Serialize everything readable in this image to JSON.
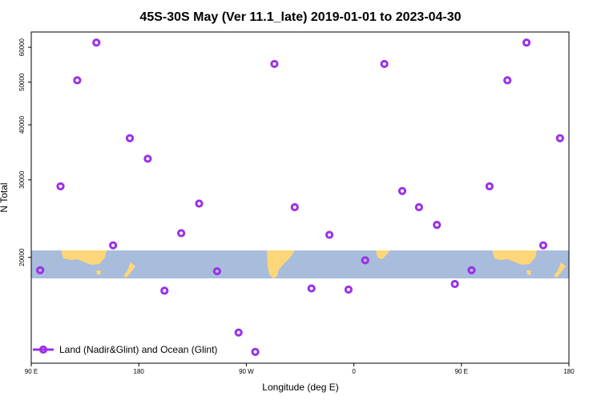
{
  "chart_data": {
    "type": "scatter",
    "title": "45S-30S May (Ver 11.1_late)   2019-01-01 to 2023-04-30",
    "xlabel": "Longitude (deg E)",
    "ylabel": "N Total",
    "x_scale": "linear",
    "y_scale": "log",
    "xlim": [
      90,
      540
    ],
    "ylim": [
      11500,
      65000
    ],
    "x_ticks": [
      {
        "value": 90,
        "label": "90 E"
      },
      {
        "value": 180,
        "label": "180"
      },
      {
        "value": 270,
        "label": "90 W"
      },
      {
        "value": 360,
        "label": "0"
      },
      {
        "value": 450,
        "label": "90 E"
      },
      {
        "value": 540,
        "label": "180"
      }
    ],
    "y_ticks": [
      {
        "value": 20000,
        "label": "20000"
      },
      {
        "value": 30000,
        "label": "30000"
      },
      {
        "value": 40000,
        "label": "40000"
      },
      {
        "value": 50000,
        "label": "50000"
      },
      {
        "value": 60000,
        "label": "60000"
      }
    ],
    "background_map": "world map strip (land shown yellow, ocean blue) spanning 45S-30S across 90E to 180 (repeated)",
    "series": [
      {
        "name": "Land (Nadir&Glint) and Ocean (Glint)",
        "color": "#9b30e8",
        "marker": "open circle",
        "x": [
          97.5,
          114.5,
          128.5,
          144.5,
          158.5,
          172.5,
          187.5,
          201.5,
          215.5,
          230.5,
          245.5,
          263.5,
          277.5,
          293.5,
          310.5,
          324.5,
          339.5,
          355.5,
          369.5,
          385.5,
          400.5,
          414.5,
          429.5,
          444.5,
          458.5,
          473.5,
          488.5,
          504.5,
          518.5,
          532.5
        ],
        "y": [
          18700,
          29000,
          50500,
          61500,
          21300,
          37300,
          33500,
          16800,
          22700,
          26500,
          18600,
          13500,
          12200,
          55000,
          26000,
          17000,
          22500,
          16900,
          19700,
          55000,
          28300,
          26000,
          23700,
          17400,
          18700,
          29000,
          50500,
          61500,
          21300,
          37300
        ]
      }
    ],
    "legend": {
      "position": "bottom-left",
      "entries": [
        "Land (Nadir&Glint) and Ocean (Glint)"
      ]
    },
    "grid": false
  }
}
